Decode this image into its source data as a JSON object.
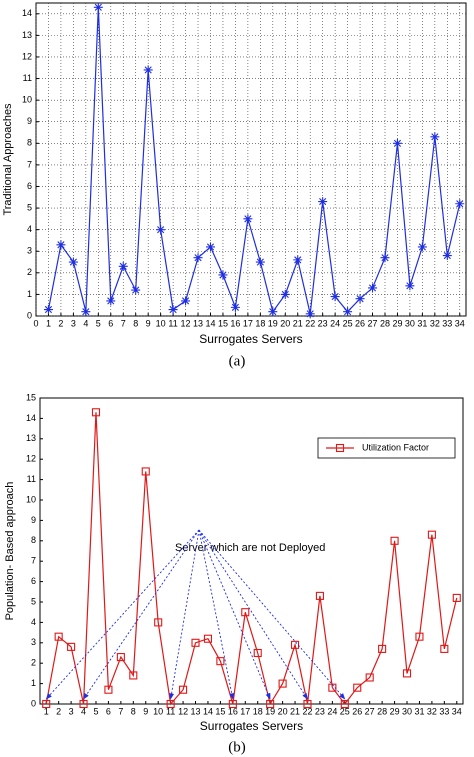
{
  "chart_data": [
    {
      "type": "line",
      "caption": "(a)",
      "xlabel": "Surrogates Servers",
      "ylabel": "Traditional Approaches",
      "x": [
        1,
        2,
        3,
        4,
        5,
        6,
        7,
        8,
        9,
        10,
        11,
        12,
        13,
        14,
        15,
        16,
        17,
        18,
        19,
        20,
        21,
        22,
        23,
        24,
        25,
        26,
        27,
        28,
        29,
        30,
        31,
        32,
        33,
        34
      ],
      "series": [
        {
          "color": "#1f2ee0",
          "marker": "star",
          "values": [
            0.3,
            3.3,
            2.5,
            0.2,
            14.3,
            0.7,
            2.3,
            1.2,
            11.4,
            4.0,
            0.3,
            0.7,
            2.7,
            3.2,
            1.9,
            0.4,
            4.5,
            2.5,
            0.2,
            1.0,
            2.6,
            0.1,
            5.3,
            0.9,
            0.2,
            0.8,
            1.3,
            2.7,
            8.0,
            1.4,
            3.2,
            8.3,
            2.8,
            5.2
          ]
        }
      ],
      "xlim": [
        0,
        34.5
      ],
      "xticks": [
        0,
        1,
        2,
        3,
        4,
        5,
        6,
        7,
        8,
        9,
        10,
        11,
        12,
        13,
        14,
        15,
        16,
        17,
        18,
        19,
        20,
        21,
        22,
        23,
        24,
        25,
        26,
        27,
        28,
        29,
        30,
        31,
        32,
        33,
        34
      ],
      "ylim": [
        0,
        14.5
      ],
      "yticks": [
        0,
        1,
        2,
        3,
        4,
        5,
        6,
        7,
        8,
        9,
        10,
        11,
        12,
        13,
        14
      ],
      "grid": true
    },
    {
      "type": "line",
      "caption": "(b)",
      "xlabel": "Surrogates Servers",
      "ylabel": "Population- Based approach",
      "x": [
        1,
        2,
        3,
        4,
        5,
        6,
        7,
        8,
        9,
        10,
        11,
        12,
        13,
        14,
        15,
        16,
        17,
        18,
        19,
        20,
        21,
        22,
        23,
        24,
        25,
        26,
        27,
        28,
        29,
        30,
        31,
        32,
        33,
        34
      ],
      "series": [
        {
          "name": "Utilization Factor",
          "color": "#e01818",
          "marker": "square",
          "values": [
            0,
            3.3,
            2.8,
            0,
            14.3,
            0.7,
            2.3,
            1.4,
            11.4,
            4.0,
            0,
            0.7,
            3.0,
            3.2,
            2.1,
            0,
            4.5,
            2.5,
            0,
            1.0,
            2.9,
            0,
            5.3,
            0.8,
            0,
            0.8,
            1.3,
            2.7,
            8.0,
            1.5,
            3.3,
            8.3,
            2.7,
            5.2
          ]
        }
      ],
      "xlim": [
        0.5,
        34.5
      ],
      "xticks": [
        1,
        2,
        3,
        4,
        5,
        6,
        7,
        8,
        9,
        10,
        11,
        12,
        13,
        14,
        15,
        16,
        17,
        18,
        19,
        20,
        21,
        22,
        23,
        24,
        25,
        26,
        27,
        28,
        29,
        30,
        31,
        32,
        33,
        34
      ],
      "ylim": [
        0,
        15
      ],
      "yticks": [
        0,
        1,
        2,
        3,
        4,
        5,
        6,
        7,
        8,
        9,
        10,
        11,
        12,
        13,
        14,
        15
      ],
      "grid": false,
      "legend": "upper right",
      "annotation": {
        "text": "Server which are not Deployed",
        "targets": [
          1,
          4,
          11,
          16,
          19,
          22,
          25
        ]
      }
    }
  ]
}
